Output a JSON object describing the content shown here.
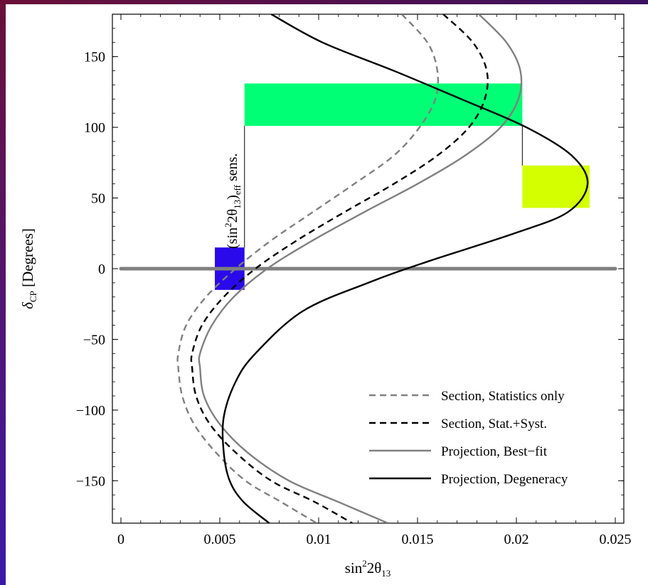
{
  "chart_data": {
    "type": "line",
    "title": "",
    "xlabel": "sin",
    "xlabel_sup": "2",
    "xlabel_rest": "2θ",
    "xlabel_sub": "13",
    "ylabel_main": "δ",
    "ylabel_sub": "CP",
    "ylabel_rest": " [Degrees]",
    "xlim": [
      0,
      0.025
    ],
    "ylim": [
      -180,
      180
    ],
    "x_ticks": [
      0,
      0.005,
      0.01,
      0.015,
      0.02,
      0.025
    ],
    "x_tick_labels": [
      "0",
      "0.005",
      "0.01",
      "0.015",
      "0.02",
      "0.025"
    ],
    "y_ticks": [
      -150,
      -100,
      -50,
      0,
      50,
      100,
      150
    ],
    "y_tick_labels": [
      "−150",
      "−100",
      "−50",
      "0",
      "50",
      "100",
      "150"
    ],
    "annotation": {
      "text_main": "(sin",
      "text_sup": "2",
      "text_mid": "2θ",
      "text_sub1": "13",
      "text_close": ")",
      "text_sub2": "eff",
      "text_end": " sens."
    },
    "reference_line": {
      "y": 0,
      "color": "#7f7f7f"
    },
    "boxes": [
      {
        "x": [
          0.00475,
          0.00625
        ],
        "y": [
          -15,
          15
        ],
        "color": "#2a0aea"
      },
      {
        "x": [
          0.00625,
          0.0203
        ],
        "y": [
          101,
          131
        ],
        "color": "#00ff74"
      },
      {
        "x": [
          0.0203,
          0.0237
        ],
        "y": [
          43,
          73
        ],
        "color": "#d4ff00"
      }
    ],
    "series": [
      {
        "name": "Section, Statistics only",
        "style": "dashed",
        "color": "#808080",
        "points": [
          [
            0.0142,
            180
          ],
          [
            0.0155,
            160
          ],
          [
            0.016,
            140
          ],
          [
            0.0159,
            120
          ],
          [
            0.0151,
            100
          ],
          [
            0.0138,
            80
          ],
          [
            0.0118,
            60
          ],
          [
            0.0097,
            40
          ],
          [
            0.0076,
            20
          ],
          [
            0.0058,
            0
          ],
          [
            0.0043,
            -20
          ],
          [
            0.0033,
            -40
          ],
          [
            0.0029,
            -60
          ],
          [
            0.0029,
            -70
          ],
          [
            0.0031,
            -90
          ],
          [
            0.0037,
            -110
          ],
          [
            0.0048,
            -130
          ],
          [
            0.0063,
            -150
          ],
          [
            0.0081,
            -165
          ],
          [
            0.0099,
            -180
          ]
        ]
      },
      {
        "name": "Section, Stat.+Syst.",
        "style": "dashed",
        "color": "#000000",
        "points": [
          [
            0.0163,
            180
          ],
          [
            0.0178,
            160
          ],
          [
            0.0185,
            140
          ],
          [
            0.0184,
            120
          ],
          [
            0.0176,
            100
          ],
          [
            0.016,
            80
          ],
          [
            0.0138,
            60
          ],
          [
            0.0113,
            40
          ],
          [
            0.0089,
            20
          ],
          [
            0.0068,
            0
          ],
          [
            0.0052,
            -20
          ],
          [
            0.0041,
            -40
          ],
          [
            0.0036,
            -60
          ],
          [
            0.0036,
            -70
          ],
          [
            0.0038,
            -90
          ],
          [
            0.0045,
            -110
          ],
          [
            0.0058,
            -130
          ],
          [
            0.0076,
            -150
          ],
          [
            0.0098,
            -165
          ],
          [
            0.0117,
            -180
          ]
        ]
      },
      {
        "name": "Projection, Best−fit",
        "style": "solid",
        "color": "#808080",
        "points": [
          [
            0.0181,
            180
          ],
          [
            0.0195,
            160
          ],
          [
            0.0202,
            140
          ],
          [
            0.0201,
            120
          ],
          [
            0.0192,
            100
          ],
          [
            0.0174,
            80
          ],
          [
            0.015,
            60
          ],
          [
            0.0123,
            40
          ],
          [
            0.0097,
            20
          ],
          [
            0.0074,
            0
          ],
          [
            0.0057,
            -20
          ],
          [
            0.0046,
            -40
          ],
          [
            0.004,
            -60
          ],
          [
            0.004,
            -70
          ],
          [
            0.0042,
            -90
          ],
          [
            0.005,
            -110
          ],
          [
            0.0064,
            -130
          ],
          [
            0.0085,
            -150
          ],
          [
            0.011,
            -165
          ],
          [
            0.0135,
            -180
          ]
        ]
      },
      {
        "name": "Projection, Degeneracy",
        "style": "solid",
        "color": "#000000",
        "points": [
          [
            0.0076,
            180
          ],
          [
            0.0102,
            160
          ],
          [
            0.0138,
            140
          ],
          [
            0.0172,
            120
          ],
          [
            0.0205,
            100
          ],
          [
            0.0228,
            80
          ],
          [
            0.0236,
            60
          ],
          [
            0.0226,
            40
          ],
          [
            0.0199,
            25
          ],
          [
            0.0155,
            5
          ],
          [
            0.0125,
            -10
          ],
          [
            0.0092,
            -30
          ],
          [
            0.0068,
            -60
          ],
          [
            0.0058,
            -80
          ],
          [
            0.0052,
            -105
          ],
          [
            0.0052,
            -130
          ],
          [
            0.0055,
            -150
          ],
          [
            0.0062,
            -165
          ],
          [
            0.0075,
            -180
          ]
        ]
      }
    ],
    "legend": {
      "position": "bottom-right",
      "entries": [
        "Section, Statistics only",
        "Section, Stat.+Syst.",
        "Projection, Best−fit",
        "Projection, Degeneracy"
      ]
    }
  }
}
